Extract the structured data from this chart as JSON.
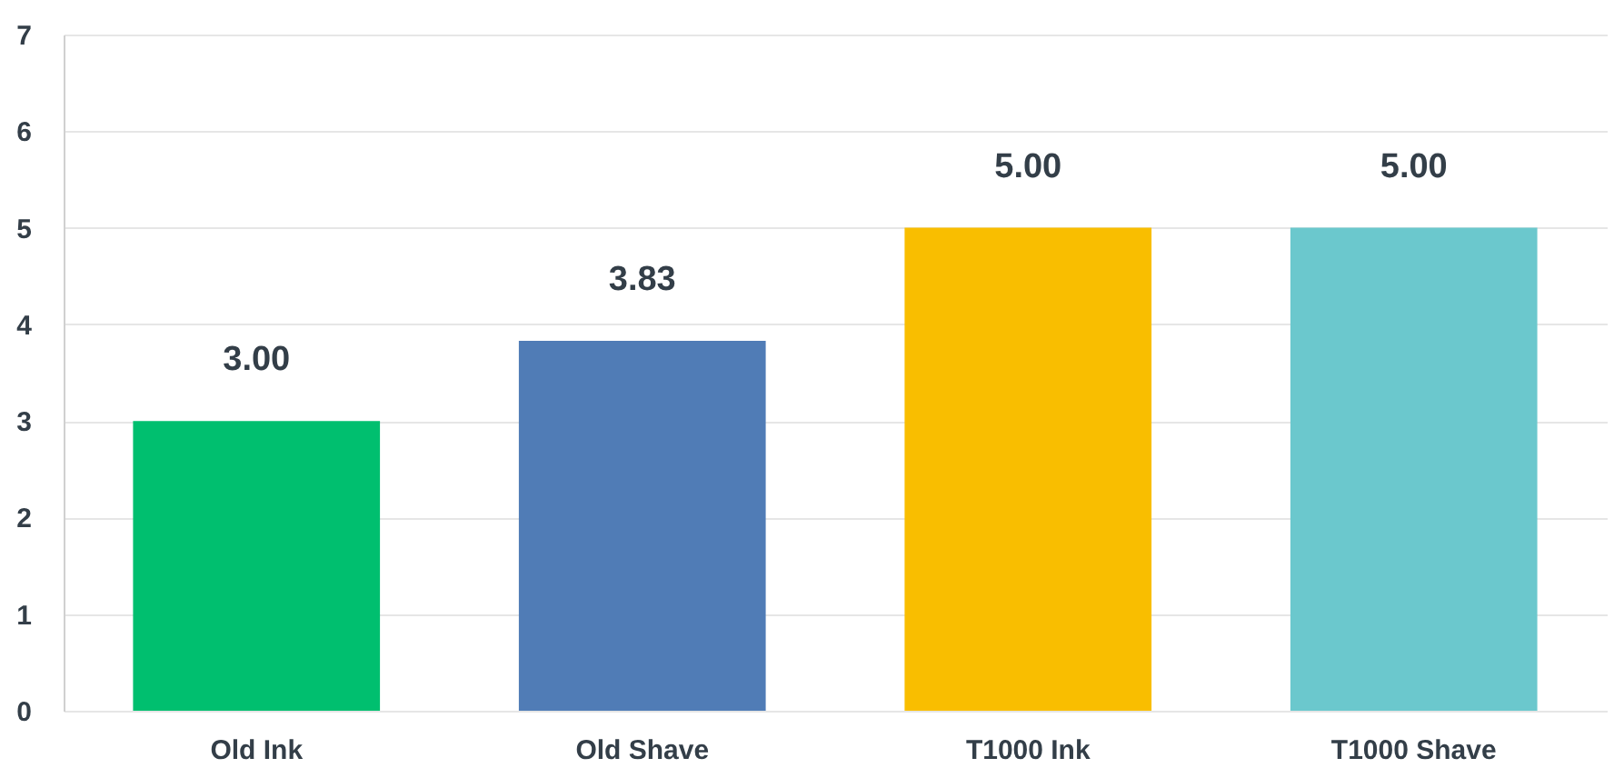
{
  "chart_data": {
    "type": "bar",
    "categories": [
      "Old Ink",
      "Old Shave",
      "T1000 Ink",
      "T1000 Shave"
    ],
    "values": [
      3.0,
      3.83,
      5.0,
      5.0
    ],
    "colors": [
      "#00bf6f",
      "#507cb6",
      "#f9be00",
      "#6bc8cd"
    ],
    "value_labels": [
      "3.00",
      "3.83",
      "5.00",
      "5.00"
    ],
    "ylim": [
      0,
      7
    ],
    "yticks": [
      0,
      1,
      2,
      3,
      4,
      5,
      6,
      7
    ],
    "grid": true
  }
}
